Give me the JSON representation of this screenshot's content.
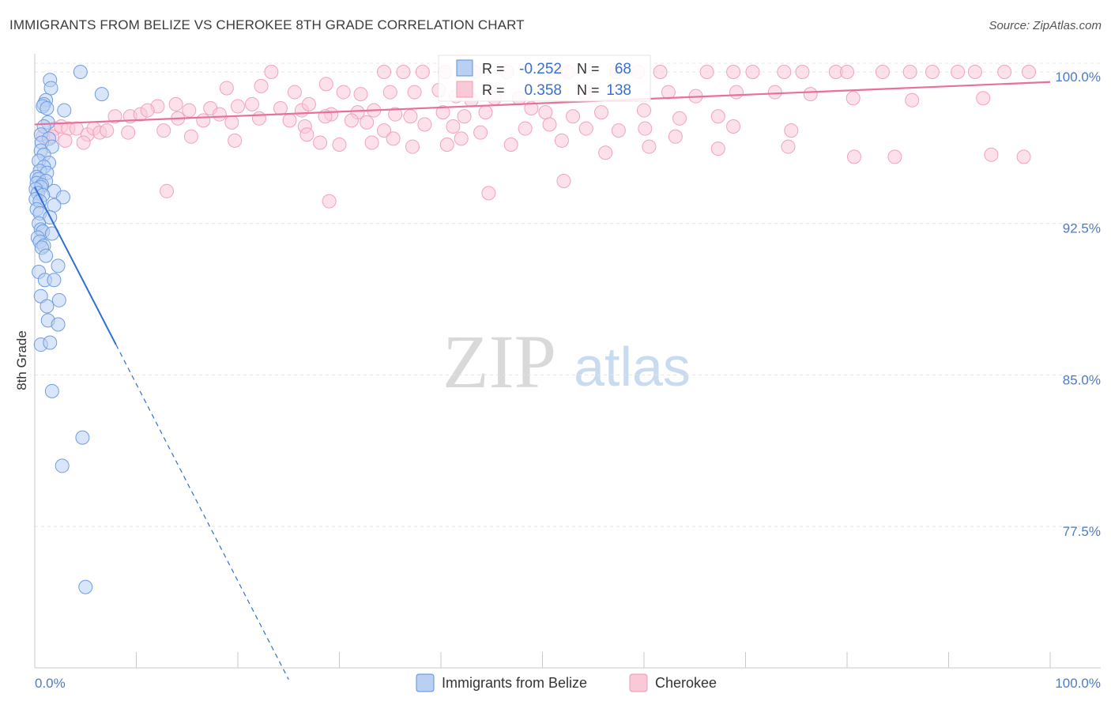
{
  "title": "IMMIGRANTS FROM BELIZE VS CHEROKEE 8TH GRADE CORRELATION CHART",
  "source": "Source: ZipAtlas.com",
  "watermark": {
    "zip": "ZIP",
    "atlas": "atlas"
  },
  "colors": {
    "belize": "#5b8fe0",
    "belize_line": "#2f6fd0",
    "cherokee": "#f19bb6",
    "cherokee_line": "#e8709a",
    "axis_text": "#4a7cc8"
  },
  "legend_box": {
    "r_label": "R =",
    "n_label": "N =",
    "rows": [
      {
        "series": "Immigrants from Belize",
        "r": "-0.252",
        "n": "68"
      },
      {
        "series": "Cherokee",
        "r": "0.358",
        "n": "138"
      }
    ]
  },
  "chart_data": {
    "type": "scatter",
    "title": "IMMIGRANTS FROM BELIZE VS CHEROKEE 8TH GRADE CORRELATION CHART",
    "xlabel": "",
    "ylabel": "8th Grade",
    "xlim": [
      0,
      100
    ],
    "ylim": [
      70.5,
      100.9
    ],
    "x_tick_labels": [
      "0.0%",
      "100.0%"
    ],
    "y_ticks": [
      {
        "value": 100.0,
        "label": "100.0%"
      },
      {
        "value": 92.5,
        "label": "92.5%"
      },
      {
        "value": 85.0,
        "label": "85.0%"
      },
      {
        "value": 77.5,
        "label": "77.5%"
      }
    ],
    "legend": [
      "Immigrants from Belize",
      "Cherokee"
    ],
    "series": [
      {
        "name": "Immigrants from Belize",
        "r": -0.252,
        "n": 68,
        "trend": {
          "x0": 0,
          "y0": 94.3,
          "x1": 8.0,
          "y1": 86.5,
          "dashed_to_x": 25.0
        },
        "points": [
          [
            4.5,
            100.0
          ],
          [
            1.5,
            99.6
          ],
          [
            1.6,
            99.2
          ],
          [
            6.6,
            98.9
          ],
          [
            1.1,
            98.6
          ],
          [
            0.9,
            98.4
          ],
          [
            0.8,
            98.3
          ],
          [
            1.2,
            98.2
          ],
          [
            2.9,
            98.1
          ],
          [
            1.3,
            97.5
          ],
          [
            0.9,
            97.3
          ],
          [
            0.6,
            96.9
          ],
          [
            1.4,
            96.7
          ],
          [
            0.7,
            96.5
          ],
          [
            1.7,
            96.3
          ],
          [
            0.6,
            96.1
          ],
          [
            0.9,
            95.9
          ],
          [
            0.4,
            95.6
          ],
          [
            1.4,
            95.5
          ],
          [
            0.9,
            95.3
          ],
          [
            0.5,
            95.1
          ],
          [
            1.2,
            95.0
          ],
          [
            0.2,
            94.8
          ],
          [
            0.4,
            94.7
          ],
          [
            1.1,
            94.6
          ],
          [
            0.2,
            94.5
          ],
          [
            0.7,
            94.4
          ],
          [
            0.6,
            94.3
          ],
          [
            0.1,
            94.2
          ],
          [
            1.9,
            94.1
          ],
          [
            0.3,
            94.0
          ],
          [
            0.8,
            93.9
          ],
          [
            2.8,
            93.8
          ],
          [
            0.1,
            93.7
          ],
          [
            0.5,
            93.6
          ],
          [
            1.9,
            93.4
          ],
          [
            0.2,
            93.2
          ],
          [
            0.5,
            93.0
          ],
          [
            1.5,
            92.8
          ],
          [
            0.4,
            92.5
          ],
          [
            0.6,
            92.2
          ],
          [
            0.8,
            92.1
          ],
          [
            1.7,
            92.0
          ],
          [
            0.3,
            91.8
          ],
          [
            0.5,
            91.6
          ],
          [
            0.9,
            91.4
          ],
          [
            0.7,
            91.3
          ],
          [
            1.1,
            90.9
          ],
          [
            2.3,
            90.4
          ],
          [
            0.4,
            90.1
          ],
          [
            1.0,
            89.7
          ],
          [
            1.9,
            89.7
          ],
          [
            0.6,
            88.9
          ],
          [
            2.4,
            88.7
          ],
          [
            1.2,
            88.4
          ],
          [
            1.3,
            87.7
          ],
          [
            2.3,
            87.5
          ],
          [
            0.6,
            86.5
          ],
          [
            1.5,
            86.6
          ],
          [
            1.7,
            84.2
          ],
          [
            4.7,
            81.9
          ],
          [
            2.7,
            80.5
          ],
          [
            5.0,
            74.5
          ]
        ]
      },
      {
        "name": "Cherokee",
        "r": 0.358,
        "n": 138,
        "trend": {
          "x0": 0,
          "y0": 97.4,
          "x1": 100,
          "y1": 99.5
        },
        "points": [
          [
            23.3,
            100.0
          ],
          [
            34.4,
            100.0
          ],
          [
            36.3,
            100.0
          ],
          [
            38.2,
            100.0
          ],
          [
            40.4,
            100.0
          ],
          [
            43.3,
            100.0
          ],
          [
            46.5,
            100.0
          ],
          [
            51.1,
            100.0
          ],
          [
            52.5,
            100.0
          ],
          [
            57.3,
            100.0
          ],
          [
            59.4,
            100.0
          ],
          [
            61.6,
            100.0
          ],
          [
            66.2,
            100.0
          ],
          [
            68.8,
            100.0
          ],
          [
            70.7,
            100.0
          ],
          [
            73.8,
            100.0
          ],
          [
            75.6,
            100.0
          ],
          [
            78.9,
            100.0
          ],
          [
            80.0,
            100.0
          ],
          [
            83.5,
            100.0
          ],
          [
            86.2,
            100.0
          ],
          [
            88.4,
            100.0
          ],
          [
            90.9,
            100.0
          ],
          [
            92.6,
            100.0
          ],
          [
            95.5,
            100.0
          ],
          [
            97.9,
            100.0
          ],
          [
            28.7,
            99.4
          ],
          [
            18.9,
            99.2
          ],
          [
            22.3,
            99.3
          ],
          [
            25.6,
            99.0
          ],
          [
            30.4,
            99.0
          ],
          [
            32.1,
            98.9
          ],
          [
            35.0,
            99.0
          ],
          [
            37.4,
            99.0
          ],
          [
            39.8,
            99.1
          ],
          [
            45.3,
            98.7
          ],
          [
            41.5,
            98.8
          ],
          [
            43.0,
            98.6
          ],
          [
            47.7,
            98.7
          ],
          [
            54.2,
            98.9
          ],
          [
            62.4,
            99.0
          ],
          [
            65.1,
            98.8
          ],
          [
            69.1,
            99.0
          ],
          [
            72.9,
            99.0
          ],
          [
            76.4,
            98.9
          ],
          [
            80.6,
            98.7
          ],
          [
            86.4,
            98.6
          ],
          [
            93.4,
            98.7
          ],
          [
            12.1,
            98.3
          ],
          [
            13.9,
            98.4
          ],
          [
            15.2,
            98.1
          ],
          [
            17.3,
            98.2
          ],
          [
            20.0,
            98.3
          ],
          [
            21.4,
            98.4
          ],
          [
            24.2,
            98.2
          ],
          [
            26.3,
            98.1
          ],
          [
            27.0,
            98.4
          ],
          [
            29.2,
            97.9
          ],
          [
            31.8,
            98.0
          ],
          [
            33.4,
            98.1
          ],
          [
            35.5,
            97.9
          ],
          [
            37.0,
            97.8
          ],
          [
            40.2,
            98.0
          ],
          [
            42.3,
            97.8
          ],
          [
            44.4,
            98.0
          ],
          [
            48.9,
            98.2
          ],
          [
            50.3,
            98.0
          ],
          [
            53.0,
            97.8
          ],
          [
            55.8,
            98.0
          ],
          [
            60.0,
            98.1
          ],
          [
            63.5,
            97.7
          ],
          [
            67.3,
            97.8
          ],
          [
            7.9,
            97.8
          ],
          [
            9.4,
            97.8
          ],
          [
            10.4,
            97.9
          ],
          [
            11.1,
            98.1
          ],
          [
            14.1,
            97.7
          ],
          [
            16.6,
            97.6
          ],
          [
            18.2,
            97.9
          ],
          [
            19.4,
            97.5
          ],
          [
            22.1,
            97.7
          ],
          [
            25.1,
            97.6
          ],
          [
            26.6,
            97.3
          ],
          [
            28.6,
            97.8
          ],
          [
            31.2,
            97.6
          ],
          [
            32.7,
            97.5
          ],
          [
            34.4,
            97.1
          ],
          [
            38.4,
            97.4
          ],
          [
            41.2,
            97.3
          ],
          [
            43.9,
            97.0
          ],
          [
            48.3,
            97.2
          ],
          [
            50.7,
            97.4
          ],
          [
            54.3,
            97.2
          ],
          [
            57.5,
            97.1
          ],
          [
            60.1,
            97.2
          ],
          [
            68.8,
            97.3
          ],
          [
            74.5,
            97.1
          ],
          [
            2.0,
            97.2
          ],
          [
            2.6,
            97.3
          ],
          [
            3.3,
            97.2
          ],
          [
            4.1,
            97.2
          ],
          [
            5.2,
            96.9
          ],
          [
            5.8,
            97.2
          ],
          [
            6.4,
            97.0
          ],
          [
            7.1,
            97.1
          ],
          [
            1.7,
            96.8
          ],
          [
            3.0,
            96.6
          ],
          [
            4.8,
            96.5
          ],
          [
            9.2,
            97.0
          ],
          [
            12.7,
            97.1
          ],
          [
            15.4,
            96.8
          ],
          [
            19.7,
            96.6
          ],
          [
            26.8,
            96.9
          ],
          [
            28.1,
            96.5
          ],
          [
            30.0,
            96.4
          ],
          [
            33.2,
            96.5
          ],
          [
            35.3,
            96.7
          ],
          [
            37.2,
            96.3
          ],
          [
            40.6,
            96.4
          ],
          [
            42.0,
            96.7
          ],
          [
            46.9,
            96.4
          ],
          [
            51.9,
            96.6
          ],
          [
            56.2,
            96.0
          ],
          [
            60.5,
            96.3
          ],
          [
            63.1,
            96.8
          ],
          [
            67.3,
            96.2
          ],
          [
            74.2,
            96.3
          ],
          [
            80.7,
            95.8
          ],
          [
            84.7,
            95.8
          ],
          [
            94.2,
            95.9
          ],
          [
            97.4,
            95.8
          ],
          [
            13.0,
            94.1
          ],
          [
            29.0,
            93.6
          ],
          [
            44.7,
            94.0
          ],
          [
            52.1,
            94.6
          ],
          [
            0.8,
            96.8
          ]
        ]
      }
    ]
  }
}
